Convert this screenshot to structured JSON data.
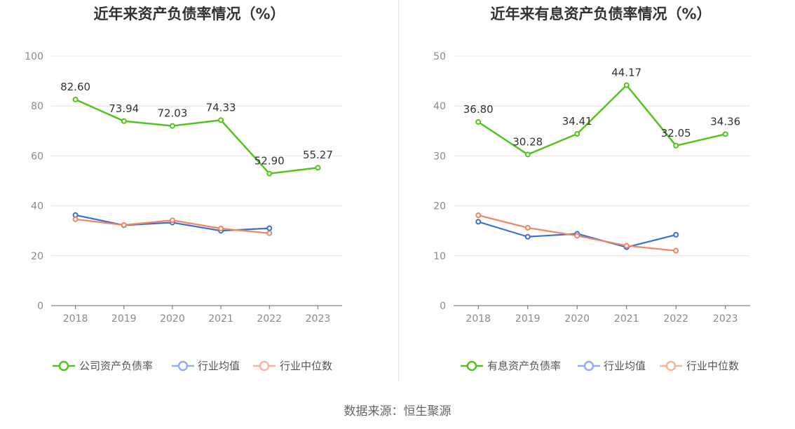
{
  "source": "数据来源：恒生聚源",
  "chart_data": [
    {
      "type": "line",
      "title": "近年来资产负债率情况（%）",
      "categories": [
        "2018",
        "2019",
        "2020",
        "2021",
        "2022",
        "2023"
      ],
      "ylim": [
        0,
        100
      ],
      "yticks": [
        0,
        20,
        40,
        60,
        80,
        100
      ],
      "grid": true,
      "legend_position": "bottom",
      "series": [
        {
          "name": "公司资产负债率",
          "color": "#52c41a",
          "values": [
            82.6,
            73.94,
            72.03,
            74.33,
            52.9,
            55.27
          ],
          "labels": [
            "82.60",
            "73.94",
            "72.03",
            "74.33",
            "52.90",
            "55.27"
          ]
        },
        {
          "name": "行业均值",
          "color": "#3a6fd8",
          "legend_color": "#8fb0f0",
          "values": [
            36.3,
            32.2,
            33.3,
            30.0,
            31.0,
            null
          ]
        },
        {
          "name": "行业中位数",
          "color": "#f08560",
          "legend_color": "#f5b6a0",
          "values": [
            34.6,
            32.3,
            34.2,
            30.9,
            29.0,
            null
          ]
        }
      ]
    },
    {
      "type": "line",
      "title": "近年来有息资产负债率情况（%）",
      "categories": [
        "2018",
        "2019",
        "2020",
        "2021",
        "2022",
        "2023"
      ],
      "ylim": [
        0,
        50
      ],
      "yticks": [
        0,
        10,
        20,
        30,
        40,
        50
      ],
      "grid": true,
      "legend_position": "bottom",
      "series": [
        {
          "name": "有息资产负债率",
          "color": "#52c41a",
          "values": [
            36.8,
            30.28,
            34.41,
            44.17,
            32.05,
            34.36
          ],
          "labels": [
            "36.80",
            "30.28",
            "34.41",
            "44.17",
            "32.05",
            "34.36"
          ]
        },
        {
          "name": "行业均值",
          "color": "#3a6fd8",
          "legend_color": "#8fb0f0",
          "values": [
            16.8,
            13.8,
            14.4,
            11.7,
            14.2,
            null
          ]
        },
        {
          "name": "行业中位数",
          "color": "#f08560",
          "legend_color": "#f5b6a0",
          "values": [
            18.1,
            15.6,
            14.0,
            12.0,
            11.0,
            null
          ]
        }
      ]
    }
  ]
}
